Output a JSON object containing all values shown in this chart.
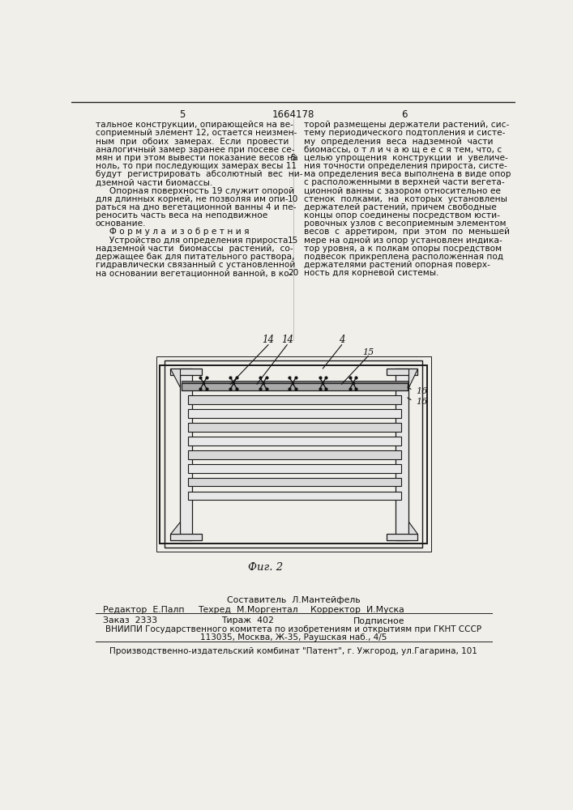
{
  "page_num_left": "5",
  "page_num_center": "1664178",
  "page_num_right": "6",
  "col_left_lines": [
    "тальное конструкции, опирающейся на ве-",
    "соприемный элемент 12, остается неизмен-",
    "ным  при  обоих  замерах.  Если  провести",
    "аналогичный замер заранее при посеве се-",
    "мян и при этом вывести показание весов на",
    "ноль, то при последующих замерах весы 11",
    "будут  регистрировать  абсолютный  вес  ни-",
    "дземной части биомассы.",
    "     Опорная поверхность 19 служит опорой",
    "для длинных корней, не позволяя им опи-",
    "раться на дно вегетационной ванны 4 и пе-",
    "реносить часть веса на неподвижное",
    "основание.",
    "     Ф о р м у л а  и з о б р е т н и я",
    "     Устройство для определения прироста",
    "надземной части  биомассы  растений,  со-",
    "держащее бак для питательного раствора,",
    "гидравлически связанный с установленной",
    "на основании вегетационной ванной, в ко-"
  ],
  "col_right_lines": [
    "торой размещены держатели растений, сис-",
    "тему периодического подтопления и систе-",
    "му  определения  веса  надземной  части",
    "биомассы, о т л и ч а ю щ е е с я тем, что, с",
    "целью упрощения  конструкции  и  увеличе-",
    "ния точности определения прироста, систе-",
    "ма определения веса выполнена в виде опор",
    "с расположенными в верхней части вегета-",
    "ционной ванны с зазором относительно ее",
    "стенок  полками,  на  которых  установлены",
    "держателей растений, причем свободные",
    "концы опор соединены посредством юсти-",
    "ровочных узлов с весоприемным элементом",
    "весов  с  арретиром,  при  этом  по  меньшей",
    "мере на одной из опор установлен индика-",
    "тор уровня, а к полкам опоры посредством",
    "подвесок прикреплена расположенная под",
    "держателями растений опорная поверх-",
    "ность для корневой системы."
  ],
  "line_num_5_row": 4,
  "line_num_10_row": 9,
  "line_num_15_row": 14,
  "line_num_20_row": 18,
  "fig_caption": "Фиг. 2",
  "footer_compiler": "Составитель  Л.Мантейфель",
  "footer_editor": "Редактор  Е.Палп",
  "footer_techred": "Техред  М.Моргентал",
  "footer_corrector": "Корректор  И.Муска",
  "footer_order": "Заказ  2333",
  "footer_tirazh": "Тираж  402",
  "footer_podpisnoe": "Подписное",
  "footer_vniiipi": "ВНИИПИ Государственного комитета по изобретениям и открытиям при ГКНТ СССР",
  "footer_address": "113035, Москва, Ж-35, Раушская наб., 4/5",
  "footer_plant": "Производственно-издательский комбинат \"Патент\", г. Ужгород, ул.Гагарина, 101",
  "bg_color": "#f0efea"
}
